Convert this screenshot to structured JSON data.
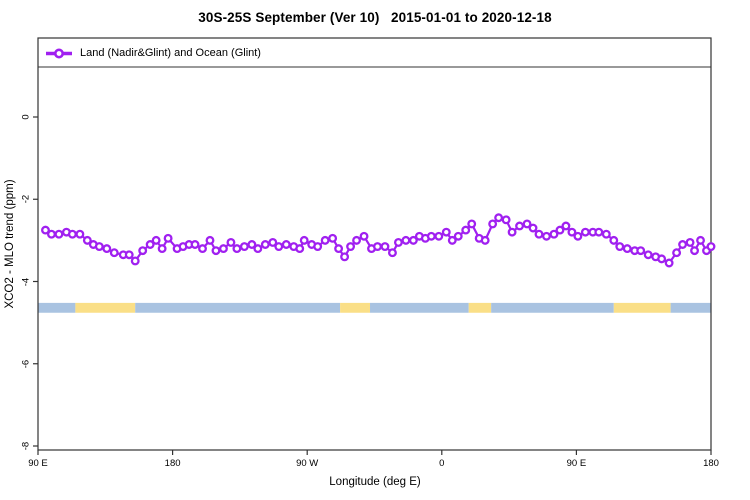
{
  "title": "30S-25S September (Ver 10)   2015-01-01 to 2020-12-18",
  "legend": {
    "label": "Land (Nadir&Glint) and Ocean (Glint)"
  },
  "x_axis": {
    "label": "Longitude (deg E)",
    "ticks": [
      {
        "lon": 90,
        "label": "90 E"
      },
      {
        "lon": 180,
        "label": "180"
      },
      {
        "lon": 270,
        "label": "90 W"
      },
      {
        "lon": 360,
        "label": "0"
      },
      {
        "lon": 450,
        "label": "90 E"
      },
      {
        "lon": 540,
        "label": "180"
      }
    ]
  },
  "y_axis": {
    "label": "XCO2 - MLO trend (ppm)",
    "ticks": [
      0,
      -2,
      -4,
      -6,
      -8
    ]
  },
  "colors": {
    "series": "#A020F0",
    "marker_fill": "#ffffff",
    "ocean_band": "#A9C3E1",
    "land_band": "#FADF87",
    "axis": "#333333"
  },
  "chart_data": {
    "type": "line",
    "title": "30S-25S September (Ver 10)   2015-01-01 to 2020-12-18",
    "xlabel": "Longitude (deg E)",
    "ylabel": "XCO2 - MLO trend (ppm)",
    "xlim": [
      90,
      540
    ],
    "ylim": [
      -8.1,
      1.9
    ],
    "grid": false,
    "legend_position": "top strip inside plot box",
    "x_axis_note": "longitude wraps: 90E to 180 to 90W to 0 to 90E to 180 (450 deg span)",
    "series": [
      {
        "name": "Land (Nadir&Glint) and Ocean (Glint)",
        "marker": "open-circle",
        "points": [
          [
            95,
            -2.75
          ],
          [
            99,
            -2.85
          ],
          [
            104,
            -2.85
          ],
          [
            109,
            -2.8
          ],
          [
            113,
            -2.85
          ],
          [
            118,
            -2.85
          ],
          [
            123,
            -3.0
          ],
          [
            127,
            -3.1
          ],
          [
            131,
            -3.15
          ],
          [
            136,
            -3.2
          ],
          [
            141,
            -3.3
          ],
          [
            147,
            -3.35
          ],
          [
            151,
            -3.35
          ],
          [
            155,
            -3.5
          ],
          [
            160,
            -3.25
          ],
          [
            165,
            -3.1
          ],
          [
            169,
            -3.0
          ],
          [
            173,
            -3.2
          ],
          [
            177,
            -2.95
          ],
          [
            183,
            -3.2
          ],
          [
            187,
            -3.15
          ],
          [
            191,
            -3.1
          ],
          [
            195,
            -3.1
          ],
          [
            200,
            -3.2
          ],
          [
            205,
            -3.0
          ],
          [
            209,
            -3.25
          ],
          [
            214,
            -3.2
          ],
          [
            219,
            -3.05
          ],
          [
            223,
            -3.2
          ],
          [
            228,
            -3.15
          ],
          [
            233,
            -3.1
          ],
          [
            237,
            -3.2
          ],
          [
            242,
            -3.1
          ],
          [
            247,
            -3.05
          ],
          [
            251,
            -3.15
          ],
          [
            256,
            -3.1
          ],
          [
            261,
            -3.15
          ],
          [
            265,
            -3.2
          ],
          [
            268,
            -3.0
          ],
          [
            273,
            -3.1
          ],
          [
            277,
            -3.15
          ],
          [
            282,
            -3.0
          ],
          [
            287,
            -2.95
          ],
          [
            291,
            -3.2
          ],
          [
            295,
            -3.4
          ],
          [
            299,
            -3.15
          ],
          [
            303,
            -3.0
          ],
          [
            308,
            -2.9
          ],
          [
            313,
            -3.2
          ],
          [
            317,
            -3.15
          ],
          [
            322,
            -3.15
          ],
          [
            327,
            -3.3
          ],
          [
            331,
            -3.05
          ],
          [
            336,
            -3.0
          ],
          [
            341,
            -3.0
          ],
          [
            345,
            -2.9
          ],
          [
            349,
            -2.95
          ],
          [
            353,
            -2.9
          ],
          [
            358,
            -2.9
          ],
          [
            363,
            -2.8
          ],
          [
            367,
            -3.0
          ],
          [
            371,
            -2.9
          ],
          [
            376,
            -2.75
          ],
          [
            380,
            -2.6
          ],
          [
            385,
            -2.95
          ],
          [
            389,
            -3.0
          ],
          [
            394,
            -2.6
          ],
          [
            398,
            -2.45
          ],
          [
            403,
            -2.5
          ],
          [
            407,
            -2.8
          ],
          [
            412,
            -2.65
          ],
          [
            417,
            -2.6
          ],
          [
            421,
            -2.7
          ],
          [
            425,
            -2.85
          ],
          [
            430,
            -2.9
          ],
          [
            435,
            -2.85
          ],
          [
            439,
            -2.75
          ],
          [
            443,
            -2.65
          ],
          [
            447,
            -2.8
          ],
          [
            451,
            -2.9
          ],
          [
            456,
            -2.8
          ],
          [
            461,
            -2.8
          ],
          [
            465,
            -2.8
          ],
          [
            470,
            -2.85
          ],
          [
            475,
            -3.0
          ],
          [
            479,
            -3.15
          ],
          [
            484,
            -3.2
          ],
          [
            489,
            -3.25
          ],
          [
            493,
            -3.25
          ],
          [
            498,
            -3.35
          ],
          [
            503,
            -3.4
          ],
          [
            507,
            -3.45
          ],
          [
            512,
            -3.55
          ],
          [
            517,
            -3.3
          ],
          [
            521,
            -3.1
          ],
          [
            526,
            -3.05
          ],
          [
            529,
            -3.25
          ],
          [
            533,
            -3.0
          ],
          [
            537,
            -3.25
          ],
          [
            540,
            -3.15
          ]
        ]
      }
    ],
    "surface_band": {
      "description": "land/ocean strip drawn across plot",
      "y_range_ppm": [
        -4.52,
        -4.76
      ],
      "segments": [
        {
          "from": 90,
          "to": 115,
          "surface": "ocean"
        },
        {
          "from": 115,
          "to": 155,
          "surface": "land"
        },
        {
          "from": 155,
          "to": 292,
          "surface": "ocean"
        },
        {
          "from": 292,
          "to": 312,
          "surface": "land"
        },
        {
          "from": 312,
          "to": 378,
          "surface": "ocean"
        },
        {
          "from": 378,
          "to": 393,
          "surface": "land"
        },
        {
          "from": 393,
          "to": 475,
          "surface": "ocean"
        },
        {
          "from": 475,
          "to": 513,
          "surface": "land"
        },
        {
          "from": 513,
          "to": 540,
          "surface": "ocean"
        }
      ]
    }
  }
}
